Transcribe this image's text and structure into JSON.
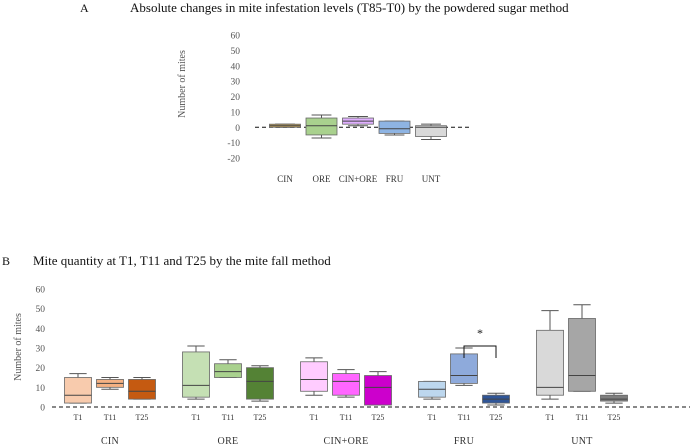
{
  "chart_data": [
    {
      "panel_letter": "A",
      "type": "boxplot",
      "title": "Absolute changes in mite infestation levels (T85-T0) by the powdered sugar method",
      "ylabel": "Number of mites",
      "ylim": [
        -20,
        60
      ],
      "yticks": [
        -20,
        -10,
        0,
        10,
        20,
        30,
        40,
        50,
        60
      ],
      "reference_line": 0,
      "categories": [
        "CIN",
        "ORE",
        "CIN+ORE",
        "FRU",
        "UNT"
      ],
      "boxes": [
        {
          "name": "CIN",
          "color": "#c4a45a",
          "whisker_low": 0,
          "q1": 0,
          "median": 1,
          "q3": 2,
          "whisker_high": 2
        },
        {
          "name": "ORE",
          "color": "#a9d18e",
          "whisker_low": -7,
          "q1": -5,
          "median": 1,
          "q3": 6,
          "whisker_high": 8
        },
        {
          "name": "CIN+ORE",
          "color": "#e0b0ff",
          "whisker_low": 1,
          "q1": 2,
          "median": 4,
          "q3": 6,
          "whisker_high": 7
        },
        {
          "name": "FRU",
          "color": "#8eb4e3",
          "whisker_low": -5,
          "q1": -4,
          "median": -1,
          "q3": 4,
          "whisker_high": 4
        },
        {
          "name": "UNT",
          "color": "#d9d9d9",
          "whisker_low": -8,
          "q1": -6,
          "median": 0,
          "q3": 1,
          "whisker_high": 2
        }
      ]
    },
    {
      "panel_letter": "B",
      "type": "boxplot",
      "title": "Mite quantity at T1, T11 and T25 by the mite fall method",
      "ylabel": "Number of mites",
      "ylim": [
        0,
        60
      ],
      "yticks": [
        0,
        10,
        20,
        30,
        40,
        50,
        60
      ],
      "reference_line": 0,
      "time_labels": [
        "T1",
        "T11",
        "T25"
      ],
      "significance": {
        "group": "FRU",
        "between": [
          "T11",
          "T25"
        ],
        "label": "*"
      },
      "groups": [
        {
          "name": "CIN",
          "boxes": [
            {
              "time": "T1",
              "color": "#f8cbad",
              "whisker_low": 2,
              "q1": 2,
              "median": 6,
              "q3": 15,
              "whisker_high": 17
            },
            {
              "time": "T11",
              "color": "#f4b183",
              "whisker_low": 9,
              "q1": 10,
              "median": 12,
              "q3": 14,
              "whisker_high": 15
            },
            {
              "time": "T25",
              "color": "#c55a11",
              "whisker_low": 4,
              "q1": 4,
              "median": 8,
              "q3": 14,
              "whisker_high": 15
            }
          ]
        },
        {
          "name": "ORE",
          "boxes": [
            {
              "time": "T1",
              "color": "#c5e0b4",
              "whisker_low": 4,
              "q1": 5,
              "median": 11,
              "q3": 28,
              "whisker_high": 31
            },
            {
              "time": "T11",
              "color": "#a9d18e",
              "whisker_low": 15,
              "q1": 15,
              "median": 18,
              "q3": 22,
              "whisker_high": 24
            },
            {
              "time": "T25",
              "color": "#548235",
              "whisker_low": 3,
              "q1": 4,
              "median": 13,
              "q3": 20,
              "whisker_high": 21
            }
          ]
        },
        {
          "name": "CIN+ORE",
          "boxes": [
            {
              "time": "T1",
              "color": "#ffccff",
              "whisker_low": 6,
              "q1": 8,
              "median": 14,
              "q3": 23,
              "whisker_high": 25
            },
            {
              "time": "T11",
              "color": "#ff66ff",
              "whisker_low": 5,
              "q1": 6,
              "median": 13,
              "q3": 17,
              "whisker_high": 19
            },
            {
              "time": "T25",
              "color": "#cc00cc",
              "whisker_low": 1,
              "q1": 1,
              "median": 10,
              "q3": 16,
              "whisker_high": 18
            }
          ]
        },
        {
          "name": "FRU",
          "boxes": [
            {
              "time": "T1",
              "color": "#bdd7ee",
              "whisker_low": 4,
              "q1": 5,
              "median": 9,
              "q3": 13,
              "whisker_high": 13
            },
            {
              "time": "T11",
              "color": "#8eaadb",
              "whisker_low": 11,
              "q1": 12,
              "median": 16,
              "q3": 27,
              "whisker_high": 30
            },
            {
              "time": "T25",
              "color": "#2f5597",
              "whisker_low": 1,
              "q1": 2,
              "median": 4,
              "q3": 6,
              "whisker_high": 7
            }
          ]
        },
        {
          "name": "UNT",
          "boxes": [
            {
              "time": "T1",
              "color": "#d9d9d9",
              "whisker_low": 4,
              "q1": 6,
              "median": 10,
              "q3": 39,
              "whisker_high": 49
            },
            {
              "time": "T11",
              "color": "#a6a6a6",
              "whisker_low": 8,
              "q1": 8,
              "median": 16,
              "q3": 45,
              "whisker_high": 52
            },
            {
              "time": "T25",
              "color": "#7f7f7f",
              "whisker_low": 2,
              "q1": 3,
              "median": 4,
              "q3": 6,
              "whisker_high": 7
            }
          ]
        }
      ]
    }
  ]
}
